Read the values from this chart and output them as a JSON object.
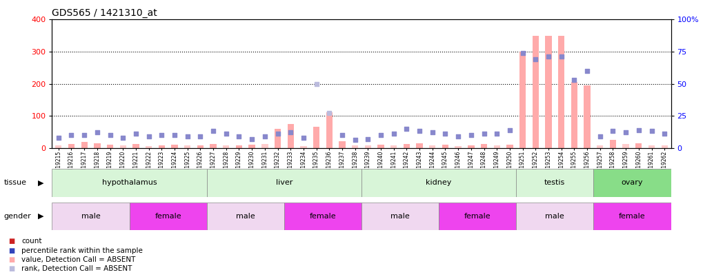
{
  "title": "GDS565 / 1421310_at",
  "samples": [
    "GSM19215",
    "GSM19216",
    "GSM19217",
    "GSM19218",
    "GSM19219",
    "GSM19220",
    "GSM19221",
    "GSM19222",
    "GSM19223",
    "GSM19224",
    "GSM19225",
    "GSM19226",
    "GSM19227",
    "GSM19228",
    "GSM19229",
    "GSM19230",
    "GSM19231",
    "GSM19232",
    "GSM19233",
    "GSM19234",
    "GSM19235",
    "GSM19236",
    "GSM19237",
    "GSM19238",
    "GSM19239",
    "GSM19240",
    "GSM19241",
    "GSM19242",
    "GSM19243",
    "GSM19244",
    "GSM19245",
    "GSM19246",
    "GSM19247",
    "GSM19248",
    "GSM19249",
    "GSM19250",
    "GSM19251",
    "GSM19252",
    "GSM19253",
    "GSM19254",
    "GSM19255",
    "GSM19256",
    "GSM19257",
    "GSM19258",
    "GSM19259",
    "GSM19260",
    "GSM19261",
    "GSM19262"
  ],
  "values": [
    8,
    12,
    18,
    15,
    10,
    7,
    12,
    5,
    8,
    10,
    7,
    8,
    12,
    8,
    7,
    10,
    12,
    60,
    75,
    5,
    65,
    110,
    20,
    8,
    7,
    10,
    8,
    12,
    15,
    8,
    10,
    5,
    7,
    12,
    8,
    10,
    300,
    350,
    350,
    350,
    205,
    195,
    8,
    25,
    12,
    15,
    8,
    7
  ],
  "percentile_ranks": [
    8,
    10,
    10,
    12,
    10,
    8,
    11,
    9,
    10,
    10,
    9,
    9,
    13,
    11,
    9,
    7,
    9,
    11,
    12,
    8,
    50,
    27,
    10,
    6,
    7,
    10,
    11,
    15,
    13,
    12,
    11,
    9,
    10,
    11,
    11,
    14,
    74,
    69,
    71,
    71,
    53,
    60,
    9,
    13,
    12,
    14,
    13,
    11
  ],
  "value_absent": [
    true,
    false,
    false,
    false,
    false,
    true,
    false,
    true,
    false,
    false,
    true,
    false,
    false,
    true,
    false,
    false,
    true,
    false,
    false,
    true,
    false,
    false,
    false,
    true,
    true,
    false,
    true,
    false,
    false,
    true,
    false,
    true,
    false,
    false,
    true,
    false,
    false,
    false,
    false,
    false,
    false,
    false,
    true,
    false,
    true,
    false,
    true,
    true
  ],
  "rank_absent": [
    false,
    false,
    false,
    false,
    false,
    false,
    false,
    false,
    false,
    false,
    false,
    false,
    false,
    false,
    false,
    false,
    false,
    false,
    false,
    false,
    true,
    true,
    false,
    false,
    false,
    false,
    false,
    false,
    false,
    false,
    false,
    false,
    false,
    false,
    false,
    false,
    false,
    false,
    false,
    false,
    false,
    false,
    false,
    false,
    false,
    false,
    false,
    false
  ],
  "tissue_groups": [
    {
      "label": "hypothalamus",
      "start": 0,
      "end": 11
    },
    {
      "label": "liver",
      "start": 12,
      "end": 23
    },
    {
      "label": "kidney",
      "start": 24,
      "end": 35
    },
    {
      "label": "testis",
      "start": 36,
      "end": 41
    },
    {
      "label": "ovary",
      "start": 42,
      "end": 47
    }
  ],
  "gender_groups": [
    {
      "label": "male",
      "start": 0,
      "end": 5
    },
    {
      "label": "female",
      "start": 6,
      "end": 11
    },
    {
      "label": "male",
      "start": 12,
      "end": 17
    },
    {
      "label": "female",
      "start": 18,
      "end": 23
    },
    {
      "label": "male",
      "start": 24,
      "end": 29
    },
    {
      "label": "female",
      "start": 30,
      "end": 35
    },
    {
      "label": "male",
      "start": 36,
      "end": 41
    },
    {
      "label": "female",
      "start": 42,
      "end": 47
    }
  ],
  "ylim_left": [
    0,
    400
  ],
  "ylim_right": [
    0,
    100
  ],
  "yticks_left": [
    0,
    100,
    200,
    300,
    400
  ],
  "yticks_right": [
    0,
    25,
    50,
    75,
    100
  ],
  "bar_color_present": "#ffaaaa",
  "bar_color_absent": "#ffcccc",
  "dot_color_present": "#8888cc",
  "dot_color_absent": "#bbbbdd",
  "tissue_color_light": "#d8f5d8",
  "tissue_color_ovary": "#88dd88",
  "gender_male_color": "#f0d8f0",
  "gender_female_color": "#ee44ee",
  "background_color": "#ffffff",
  "legend_dot_red": "#cc2222",
  "legend_dot_blue": "#3344bb",
  "legend_dot_pink": "#ffaaaa",
  "legend_dot_lblue": "#bbbbdd"
}
